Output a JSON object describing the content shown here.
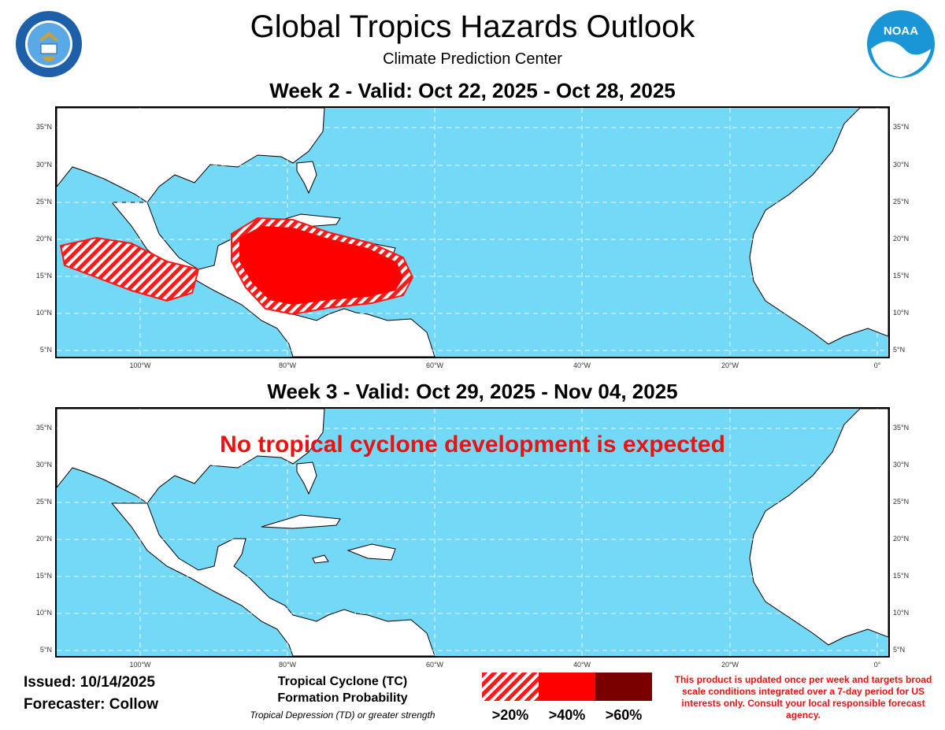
{
  "header": {
    "title": "Global Tropics Hazards Outlook",
    "subtitle": "Climate Prediction Center",
    "doc_logo_text": "DEPARTMENT OF COMMERCE · UNITED STATES OF AMERICA",
    "noaa_logo_text": "NOAA"
  },
  "panels": [
    {
      "title": "Week 2 - Valid: Oct 22, 2025 - Oct 28, 2025",
      "hazards": [
        {
          "region": "Eastern Pacific off southern Mexico",
          "probability": ">20%"
        },
        {
          "region": "Caribbean Sea",
          "probability": ">40%"
        }
      ]
    },
    {
      "title": "Week 3 - Valid: Oct 29, 2025 - Nov 04, 2025",
      "message": "No tropical cyclone development is expected"
    }
  ],
  "axes": {
    "lat_labels": [
      "35°N",
      "30°N",
      "25°N",
      "20°N",
      "15°N",
      "10°N",
      "5°N"
    ],
    "lon_labels": [
      "100°W",
      "80°W",
      "60°W",
      "40°W",
      "20°W",
      "0°"
    ]
  },
  "footer": {
    "issued": "Issued: 10/14/2025",
    "forecaster": "Forecaster: Collow"
  },
  "legend": {
    "title_line1": "Tropical Cyclone (TC)",
    "title_line2": "Formation Probability",
    "note": "Tropical Depression (TD) or greater strength",
    "items": [
      {
        "label": ">20%",
        "color": "#ff1a1a",
        "style": "hatched"
      },
      {
        "label": ">40%",
        "color": "#ff0000",
        "style": "solid"
      },
      {
        "label": ">60%",
        "color": "#7a0000",
        "style": "solid"
      }
    ]
  },
  "disclaimer": "This product is updated once per week and targets broad scale conditions integrated over a 7-day period for US interests only. Consult your local responsible forecast agency.",
  "colors": {
    "ocean": "#74d8f7",
    "land": "#ffffff",
    "hazard": "#ff0000",
    "text_alert": "#ee1111"
  }
}
